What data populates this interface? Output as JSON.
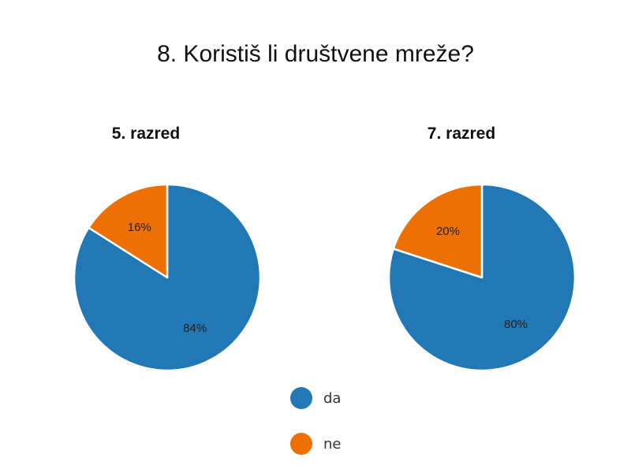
{
  "title": "8. Koristiš li društvene mreže?",
  "legend": [
    {
      "label": "da",
      "color": "#2178b5"
    },
    {
      "label": "ne",
      "color": "#ee6f04"
    }
  ],
  "chart_data": [
    {
      "type": "pie",
      "title": "5. razred",
      "slices": [
        {
          "label": "da",
          "value": 84,
          "display": "84%",
          "color": "#2178b5"
        },
        {
          "label": "ne",
          "value": 16,
          "display": "16%",
          "color": "#ee6f04"
        }
      ]
    },
    {
      "type": "pie",
      "title": "7. razred",
      "slices": [
        {
          "label": "da",
          "value": 80,
          "display": "80%",
          "color": "#2178b5"
        },
        {
          "label": "ne",
          "value": 20,
          "display": "20%",
          "color": "#ee6f04"
        }
      ]
    }
  ]
}
